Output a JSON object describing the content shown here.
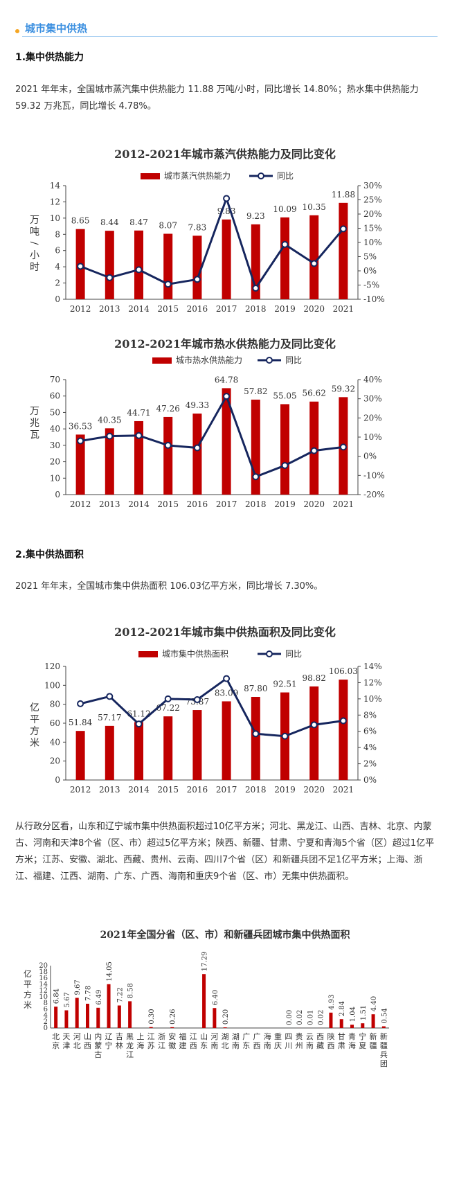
{
  "header": {
    "title": "城市集中供热"
  },
  "section1": {
    "heading": "1.集中供热能力",
    "text": "2021 年年末，全国城市蒸汽集中供热能力 11.88 万吨/小时，同比增长 14.80%；热水集中供热能力 59.32 万兆瓦，同比增长 4.78%。"
  },
  "section2": {
    "heading": "2.集中供热面积",
    "text": "2021 年年末，全国城市集中供热面积 106.03亿平方米，同比增长 7.30%。",
    "detail": "从行政分区看，山东和辽宁城市集中供热面积超过10亿平方米；河北、黑龙江、山西、吉林、北京、内蒙古、河南和天津8个省（区、市）超过5亿平方米；陕西、新疆、甘肃、宁夏和青海5个省（区）超过1亿平方米；江苏、安徽、湖北、西藏、贵州、云南、四川7个省（区）和新疆兵团不足1亿平方米；上海、浙江、福建、江西、湖南、广东、广西、海南和重庆9个省（区、市）无集中供热面积。"
  },
  "colors": {
    "bar": "#c00000",
    "line": "#16265e"
  },
  "chart_data": [
    {
      "type": "bar",
      "title": "2012-2021年城市蒸汽供热能力及同比变化",
      "ylabel": "万吨/小时",
      "categories": [
        "2012",
        "2013",
        "2014",
        "2015",
        "2016",
        "2017",
        "2018",
        "2019",
        "2020",
        "2021"
      ],
      "series": [
        {
          "name": "城市蒸汽供热能力",
          "values": [
            8.65,
            8.44,
            8.47,
            8.07,
            7.83,
            9.83,
            9.23,
            10.09,
            10.35,
            11.88
          ]
        },
        {
          "name": "同比",
          "values": [
            1.6,
            -2.4,
            0.4,
            -4.7,
            -3.0,
            25.5,
            -6.1,
            9.3,
            2.6,
            14.8
          ]
        }
      ],
      "ylim": [
        0,
        14
      ],
      "y2lim": [
        -10,
        30
      ],
      "yticks": [
        "0",
        "2",
        "4",
        "6",
        "8",
        "10",
        "12",
        "14"
      ],
      "y2ticks": [
        "-10%",
        "-5%",
        "0%",
        "5%",
        "10%",
        "15%",
        "20%",
        "25%",
        "30%"
      ]
    },
    {
      "type": "bar",
      "title": "2012-2021年城市热水供热能力及同比变化",
      "ylabel": "万兆瓦",
      "categories": [
        "2012",
        "2013",
        "2014",
        "2015",
        "2016",
        "2017",
        "2018",
        "2019",
        "2020",
        "2021"
      ],
      "series": [
        {
          "name": "城市热水供热能力",
          "values": [
            36.53,
            40.35,
            44.71,
            47.26,
            49.33,
            64.78,
            57.82,
            55.05,
            56.62,
            59.32
          ]
        },
        {
          "name": "同比",
          "values": [
            8.0,
            10.5,
            10.8,
            5.7,
            4.4,
            31.3,
            -10.7,
            -4.8,
            2.9,
            4.8
          ]
        }
      ],
      "ylim": [
        0,
        70
      ],
      "y2lim": [
        -20,
        40
      ],
      "yticks": [
        "0",
        "10",
        "20",
        "30",
        "40",
        "50",
        "60",
        "70"
      ],
      "y2ticks": [
        "-20%",
        "-10%",
        "0%",
        "10%",
        "20%",
        "30%",
        "40%"
      ]
    },
    {
      "type": "bar",
      "title": "2012-2021年城市集中供热面积及同比变化",
      "ylabel": "亿平方米",
      "categories": [
        "2012",
        "2013",
        "2014",
        "2015",
        "2016",
        "2017",
        "2018",
        "2019",
        "2020",
        "2021"
      ],
      "series": [
        {
          "name": "城市集中供热面积",
          "values": [
            51.84,
            57.17,
            61.12,
            67.22,
            73.87,
            83.09,
            87.8,
            92.51,
            98.82,
            106.03
          ]
        },
        {
          "name": "同比",
          "values": [
            9.4,
            10.3,
            6.9,
            10.0,
            9.9,
            12.5,
            5.7,
            5.4,
            6.8,
            7.3
          ]
        }
      ],
      "ylim": [
        0,
        120
      ],
      "y2lim": [
        0,
        14
      ],
      "yticks": [
        "0",
        "20",
        "40",
        "60",
        "80",
        "100",
        "120"
      ],
      "y2ticks": [
        "0%",
        "2%",
        "4%",
        "6%",
        "8%",
        "10%",
        "12%",
        "14%"
      ]
    },
    {
      "type": "bar",
      "title": "2021年全国分省（区、市）和新疆兵团城市集中供热面积",
      "ylabel": "亿平方米",
      "yticks": [
        "0",
        "2",
        "4",
        "6",
        "8",
        "10",
        "12",
        "14",
        "16",
        "18",
        "20"
      ],
      "ylim": [
        0,
        20
      ],
      "categories": [
        "北京",
        "天津",
        "河北",
        "山西",
        "内蒙古",
        "辽宁",
        "吉林",
        "黑龙江",
        "上海",
        "江苏",
        "浙江",
        "安徽",
        "福建",
        "江西",
        "山东",
        "河南",
        "湖北",
        "湖南",
        "广东",
        "广西",
        "海南",
        "重庆",
        "四川",
        "贵州",
        "云南",
        "西藏",
        "陕西",
        "甘肃",
        "青海",
        "宁夏",
        "新疆",
        "新疆兵团"
      ],
      "values": [
        6.84,
        5.67,
        9.67,
        7.78,
        6.49,
        14.05,
        7.22,
        8.58,
        null,
        0.3,
        null,
        0.26,
        null,
        null,
        17.29,
        6.4,
        0.2,
        null,
        null,
        null,
        null,
        null,
        0.0,
        0.02,
        0.01,
        0.02,
        4.93,
        2.84,
        1.04,
        1.51,
        4.4,
        0.54
      ],
      "labels": [
        "6.84",
        "5.67",
        "9.67",
        "7.78",
        "6.49",
        "14.05",
        "7.22",
        "8.58",
        "",
        "0.30",
        "",
        "0.26",
        "",
        "",
        "17.29",
        "6.40",
        "0.20",
        "",
        "",
        "",
        "",
        "",
        "0.00",
        "0.02",
        "0.01",
        "0.02",
        "4.93",
        "2.84",
        "1.04",
        "1.51",
        "4.40",
        "0.54"
      ]
    }
  ]
}
